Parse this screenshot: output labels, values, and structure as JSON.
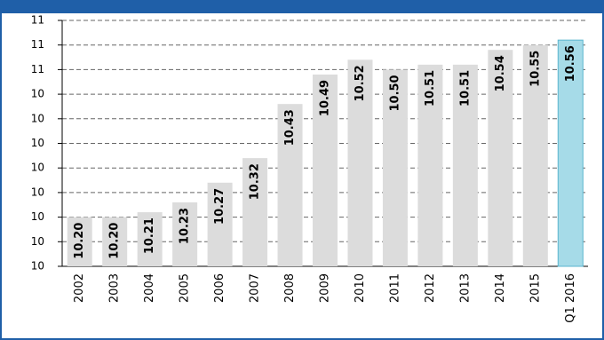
{
  "chart_data": {
    "type": "bar",
    "categories": [
      "2002",
      "2003",
      "2004",
      "2005",
      "2006",
      "2007",
      "2008",
      "2009",
      "2010",
      "2011",
      "2012",
      "2013",
      "2014",
      "2015",
      "Q1 2016"
    ],
    "values": [
      10.2,
      10.2,
      10.21,
      10.23,
      10.27,
      10.32,
      10.43,
      10.49,
      10.52,
      10.5,
      10.51,
      10.51,
      10.54,
      10.55,
      10.56
    ],
    "value_labels": [
      "10.20",
      "10.20",
      "10.21",
      "10.23",
      "10.27",
      "10.32",
      "10.43",
      "10.49",
      "10.52",
      "10.50",
      "10.51",
      "10.51",
      "10.54",
      "10.55",
      "10.56"
    ],
    "colors": [
      "#dcdcdc",
      "#dcdcdc",
      "#dcdcdc",
      "#dcdcdc",
      "#dcdcdc",
      "#dcdcdc",
      "#dcdcdc",
      "#dcdcdc",
      "#dcdcdc",
      "#dcdcdc",
      "#dcdcdc",
      "#dcdcdc",
      "#dcdcdc",
      "#dcdcdc",
      "#a6dbe8"
    ],
    "ylim": [
      10.1,
      10.6
    ],
    "yticks": [
      {
        "value": 10.1,
        "label": "10"
      },
      {
        "value": 10.15,
        "label": "10"
      },
      {
        "value": 10.2,
        "label": "10"
      },
      {
        "value": 10.25,
        "label": "10"
      },
      {
        "value": 10.3,
        "label": "10"
      },
      {
        "value": 10.35,
        "label": "10"
      },
      {
        "value": 10.4,
        "label": "10"
      },
      {
        "value": 10.45,
        "label": "10"
      },
      {
        "value": 10.5,
        "label": "11"
      },
      {
        "value": 10.55,
        "label": "11"
      },
      {
        "value": 10.6,
        "label": "11"
      }
    ],
    "grid": true
  }
}
